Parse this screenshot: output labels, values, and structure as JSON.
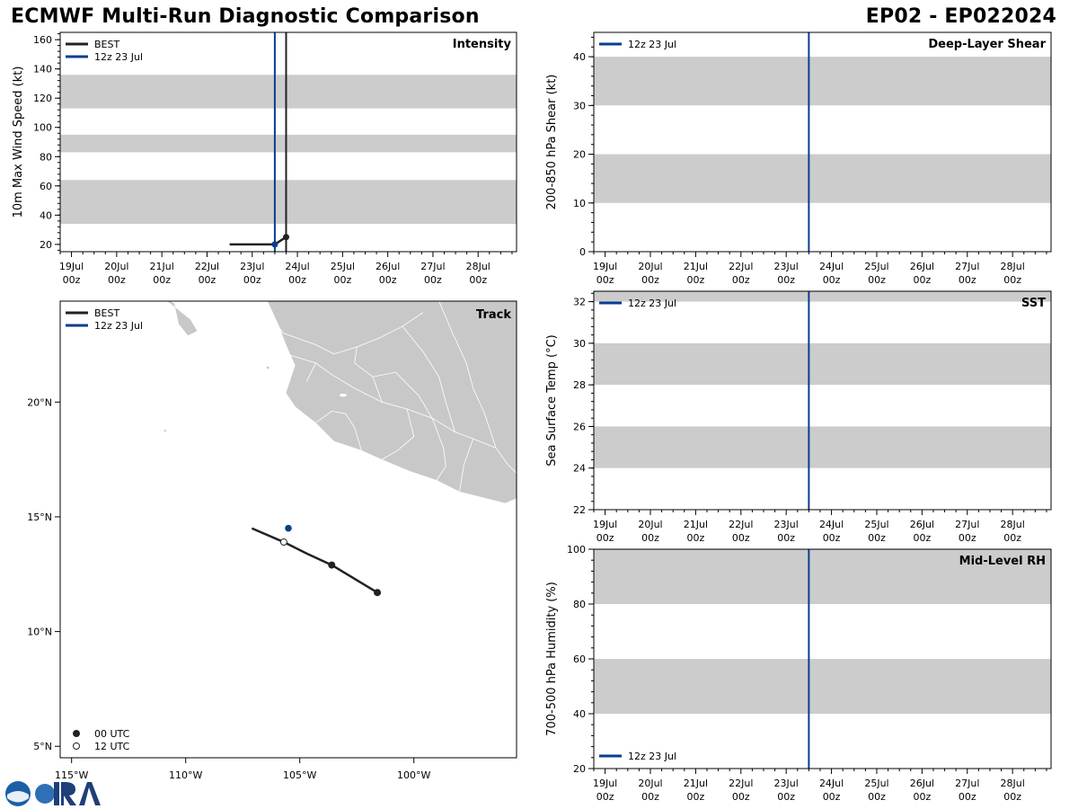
{
  "header": {
    "title": "ECMWF Multi-Run Diagnostic Comparison",
    "storm_id": "EP02 - EP022024"
  },
  "colors": {
    "best": "#222222",
    "run": "#0a3d8f",
    "band": "#cccccc",
    "land": "#c8c8c8",
    "land_border": "#ffffff"
  },
  "time_axis": {
    "ticks": [
      {
        "day": 0,
        "line1": "19Jul",
        "line2": "00z"
      },
      {
        "day": 1,
        "line1": "20Jul",
        "line2": "00z"
      },
      {
        "day": 2,
        "line1": "21Jul",
        "line2": "00z"
      },
      {
        "day": 3,
        "line1": "22Jul",
        "line2": "00z"
      },
      {
        "day": 4,
        "line1": "23Jul",
        "line2": "00z"
      },
      {
        "day": 5,
        "line1": "24Jul",
        "line2": "00z"
      },
      {
        "day": 6,
        "line1": "25Jul",
        "line2": "00z"
      },
      {
        "day": 7,
        "line1": "26Jul",
        "line2": "00z"
      },
      {
        "day": 8,
        "line1": "27Jul",
        "line2": "00z"
      },
      {
        "day": 9,
        "line1": "28Jul",
        "line2": "00z"
      }
    ],
    "xlim_days": [
      -0.25,
      9.85
    ]
  },
  "chart_data": [
    {
      "id": "intensity",
      "type": "line",
      "label": "Intensity",
      "ylabel": "10m Max Wind Speed (kt)",
      "ylim": [
        15,
        165
      ],
      "yticks": [
        20,
        40,
        60,
        80,
        100,
        120,
        140,
        160
      ],
      "bands": [
        [
          34,
          64
        ],
        [
          83,
          95
        ],
        [
          113,
          136
        ]
      ],
      "legend": [
        {
          "name": "BEST",
          "color": "best"
        },
        {
          "name": "12z 23 Jul",
          "color": "run"
        }
      ],
      "vlines": [
        {
          "day": 4.5,
          "color": "run"
        },
        {
          "day": 4.75,
          "color": "best"
        }
      ],
      "series": [
        {
          "name": "BEST",
          "color": "best",
          "points": [
            [
              3.5,
              20
            ],
            [
              4.5,
              20
            ],
            [
              4.75,
              25
            ]
          ],
          "markers": [
            [
              4.75,
              25
            ]
          ]
        },
        {
          "name": "12z 23 Jul",
          "color": "run",
          "points": [],
          "markers": [
            [
              4.5,
              20
            ]
          ]
        }
      ]
    },
    {
      "id": "shear",
      "type": "line",
      "label": "Deep-Layer Shear",
      "ylabel": "200-850 hPa Shear (kt)",
      "ylim": [
        0,
        45
      ],
      "yticks": [
        0,
        10,
        20,
        30,
        40
      ],
      "bands": [
        [
          10,
          20
        ],
        [
          30,
          40
        ]
      ],
      "legend": [
        {
          "name": "12z 23 Jul",
          "color": "run"
        }
      ],
      "vlines": [
        {
          "day": 4.5,
          "color": "run"
        }
      ],
      "series": []
    },
    {
      "id": "sst",
      "type": "line",
      "label": "SST",
      "ylabel": "Sea Surface Temp (°C)",
      "ylim": [
        22,
        32.5
      ],
      "yticks": [
        22,
        24,
        26,
        28,
        30,
        32
      ],
      "bands": [
        [
          24,
          26
        ],
        [
          28,
          30
        ],
        [
          32,
          32.5
        ]
      ],
      "legend": [
        {
          "name": "12z 23 Jul",
          "color": "run"
        }
      ],
      "vlines": [
        {
          "day": 4.5,
          "color": "run"
        }
      ],
      "series": []
    },
    {
      "id": "rh",
      "type": "line",
      "label": "Mid-Level RH",
      "ylabel": "700-500 hPa Humidity (%)",
      "ylim": [
        20,
        100
      ],
      "yticks": [
        20,
        40,
        60,
        80,
        100
      ],
      "bands": [
        [
          40,
          60
        ],
        [
          80,
          100
        ]
      ],
      "legend": [
        {
          "name": "12z 23 Jul",
          "color": "run"
        }
      ],
      "legend_pos": "bottom-left",
      "vlines": [
        {
          "day": 4.5,
          "color": "run"
        }
      ],
      "series": []
    },
    {
      "id": "track",
      "type": "scatter",
      "label": "Track",
      "xlim": [
        -115.5,
        -95.5
      ],
      "ylim": [
        4.5,
        24.4
      ],
      "xticks": [
        {
          "v": -115,
          "label": "115°W"
        },
        {
          "v": -110,
          "label": "110°W"
        },
        {
          "v": -105,
          "label": "105°W"
        },
        {
          "v": -100,
          "label": "100°W"
        }
      ],
      "yticks": [
        {
          "v": 5,
          "label": "5°N"
        },
        {
          "v": 10,
          "label": "10°N"
        },
        {
          "v": 15,
          "label": "15°N"
        },
        {
          "v": 20,
          "label": "20°N"
        }
      ],
      "legend": [
        {
          "name": "BEST",
          "color": "best"
        },
        {
          "name": "12z 23 Jul",
          "color": "run"
        }
      ],
      "marker_legend": [
        {
          "name": "00 UTC",
          "filled": true
        },
        {
          "name": "12 UTC",
          "filled": false
        }
      ],
      "best_track": [
        [
          -101.6,
          11.7
        ],
        [
          -103.6,
          12.9
        ],
        [
          -104.7,
          13.4
        ],
        [
          -105.7,
          13.9
        ],
        [
          -107.1,
          14.5
        ]
      ],
      "best_markers": [
        {
          "lon": -101.6,
          "lat": 11.7,
          "filled": true
        },
        {
          "lon": -103.6,
          "lat": 12.9,
          "filled": true
        },
        {
          "lon": -105.7,
          "lat": 13.9,
          "filled": false
        }
      ],
      "run_markers": [
        {
          "lon": -105.5,
          "lat": 14.5
        }
      ]
    }
  ]
}
